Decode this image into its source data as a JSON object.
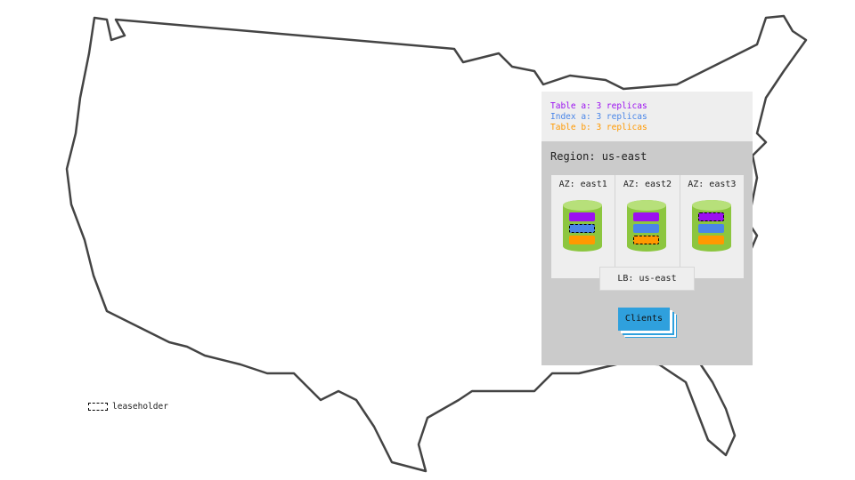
{
  "legend": [
    {
      "text": "Table a: 3 replicas",
      "color": "#9b10f0"
    },
    {
      "text": "Index a: 3 replicas",
      "color": "#4a86e8"
    },
    {
      "text": "Table b: 3 replicas",
      "color": "#ff9900"
    }
  ],
  "region": "Region: us-east",
  "azs": [
    {
      "label": "AZ: east1",
      "leaseholder": "index"
    },
    {
      "label": "AZ: east2",
      "leaseholder": "tableb"
    },
    {
      "label": "AZ: east3",
      "leaseholder": "tablea"
    }
  ],
  "lb": "LB: us-east",
  "clients": "Clients",
  "key": "leaseholder"
}
